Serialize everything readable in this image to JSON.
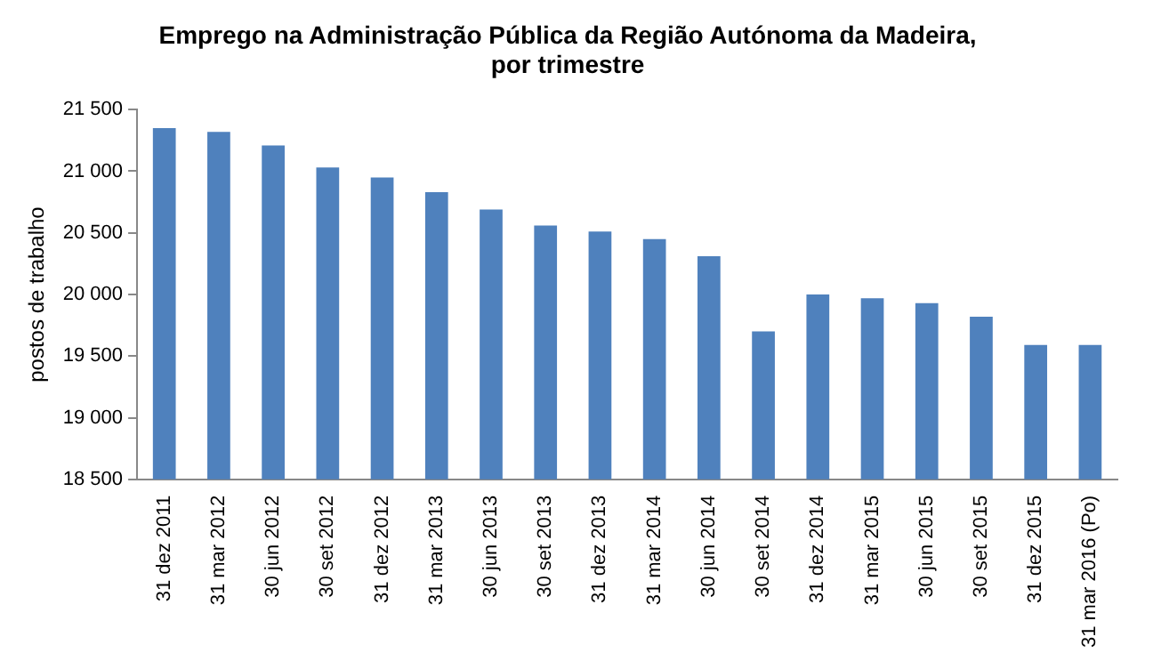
{
  "chart_data": {
    "type": "bar",
    "title": "Emprego na Administração Pública da Região Autónoma da Madeira,\npor trimestre",
    "ylabel": "postos de trabalho",
    "categories": [
      "31 dez 2011",
      "31 mar 2012",
      "30 jun 2012",
      "30 set 2012",
      "31 dez 2012",
      "31 mar 2013",
      "30 jun 2013",
      "30 set 2013",
      "31 dez 2013",
      "31 mar 2014",
      "30 jun 2014",
      "30 set 2014",
      "31 dez 2014",
      "31 mar 2015",
      "30 jun 2015",
      "30 set 2015",
      "31 dez 2015",
      "31 mar 2016 (Po)"
    ],
    "values": [
      21350,
      21320,
      21210,
      21030,
      20950,
      20830,
      20690,
      20560,
      20510,
      20450,
      20310,
      19700,
      20000,
      19970,
      19930,
      19820,
      19590,
      19590
    ],
    "color": "#4f81bd",
    "ylim": [
      18500,
      21500
    ],
    "yticks": [
      {
        "value": 18500,
        "label": "18 500"
      },
      {
        "value": 19000,
        "label": "19 000"
      },
      {
        "value": 19500,
        "label": "19 500"
      },
      {
        "value": 20000,
        "label": "20 000"
      },
      {
        "value": 20500,
        "label": "20 500"
      },
      {
        "value": 21000,
        "label": "21 000"
      },
      {
        "value": 21500,
        "label": "21 500"
      }
    ],
    "grid": false,
    "legend": false
  }
}
